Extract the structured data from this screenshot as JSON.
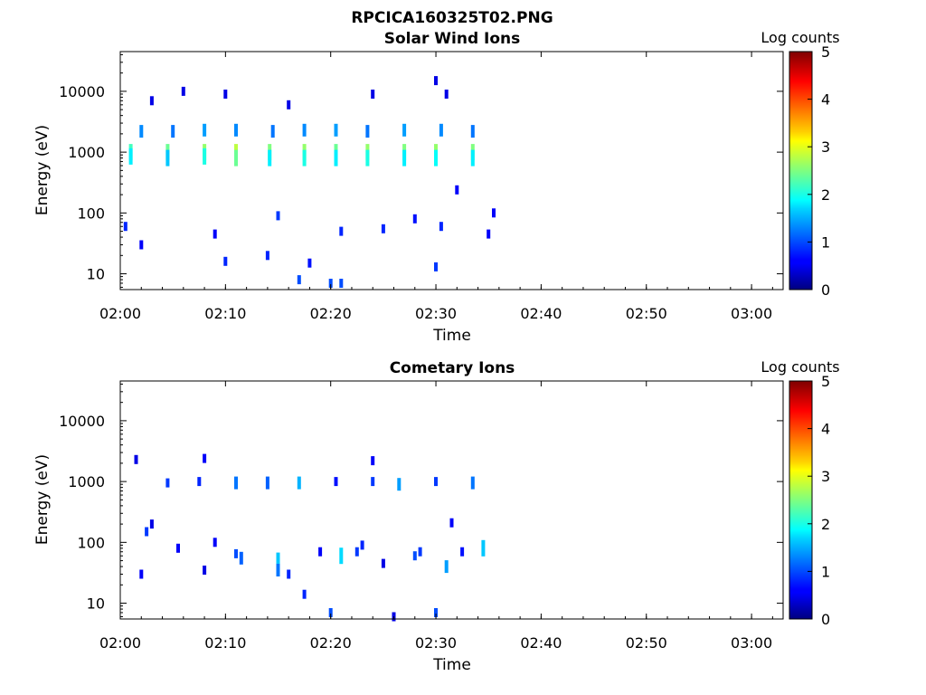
{
  "figure": {
    "title": "RPCICA160325T02.PNG"
  },
  "chart_data": [
    {
      "type": "heatmap",
      "title": "Solar Wind Ions",
      "xlabel": "Time",
      "ylabel": "Energy (eV)",
      "yscale": "log",
      "xlim": [
        "02:00",
        "03:03"
      ],
      "ylim": [
        5.5,
        45000
      ],
      "xticks": [
        "02:00",
        "02:10",
        "02:20",
        "02:30",
        "02:40",
        "02:50",
        "03:00"
      ],
      "yticks": [
        10,
        100,
        1000,
        10000
      ],
      "ytick_labels": [
        "10",
        "100",
        "1000",
        "10000"
      ],
      "colorbar": {
        "label": "Log counts",
        "min": 0,
        "max": 5,
        "ticks": [
          0,
          1,
          2,
          3,
          4,
          5
        ],
        "colormap": "jet"
      },
      "grid": false,
      "cells": [
        [
          "02:01",
          1000,
          2.2
        ],
        [
          "02:01",
          850,
          1.8
        ],
        [
          "02:04.5",
          1000,
          2.4
        ],
        [
          "02:04.5",
          800,
          1.6
        ],
        [
          "02:08",
          1000,
          2.6
        ],
        [
          "02:08",
          850,
          2.0
        ],
        [
          "02:11",
          1000,
          2.8
        ],
        [
          "02:11",
          800,
          2.4
        ],
        [
          "02:14.2",
          1000,
          2.5
        ],
        [
          "02:14.2",
          800,
          1.8
        ],
        [
          "02:17.5",
          1000,
          2.6
        ],
        [
          "02:17.5",
          800,
          2.0
        ],
        [
          "02:20.5",
          1000,
          2.4
        ],
        [
          "02:20.5",
          800,
          1.8
        ],
        [
          "02:23.5",
          1000,
          2.6
        ],
        [
          "02:23.5",
          800,
          2.0
        ],
        [
          "02:27",
          1000,
          2.5
        ],
        [
          "02:27",
          800,
          1.8
        ],
        [
          "02:30",
          1000,
          2.6
        ],
        [
          "02:30",
          800,
          1.9
        ],
        [
          "02:33.5",
          1000,
          2.5
        ],
        [
          "02:33.5",
          800,
          1.8
        ],
        [
          "02:02",
          2200,
          1.3
        ],
        [
          "02:05",
          2200,
          1.2
        ],
        [
          "02:08",
          2300,
          1.4
        ],
        [
          "02:11",
          2300,
          1.3
        ],
        [
          "02:14.5",
          2200,
          1.2
        ],
        [
          "02:17.5",
          2300,
          1.3
        ],
        [
          "02:20.5",
          2300,
          1.4
        ],
        [
          "02:23.5",
          2200,
          1.2
        ],
        [
          "02:27",
          2300,
          1.4
        ],
        [
          "02:30.5",
          2300,
          1.3
        ],
        [
          "02:33.5",
          2200,
          1.2
        ],
        [
          "02:03",
          7000,
          0.5
        ],
        [
          "02:06",
          10000,
          0.5
        ],
        [
          "02:10",
          9000,
          0.5
        ],
        [
          "02:16",
          6000,
          0.5
        ],
        [
          "02:24",
          9000,
          0.5
        ],
        [
          "02:30",
          15000,
          0.5
        ],
        [
          "02:31",
          9000,
          0.5
        ],
        [
          "02:00.5",
          60,
          0.8
        ],
        [
          "02:02",
          30,
          0.6
        ],
        [
          "02:09",
          45,
          0.6
        ],
        [
          "02:10",
          16,
          0.8
        ],
        [
          "02:14",
          20,
          0.8
        ],
        [
          "02:15",
          90,
          0.9
        ],
        [
          "02:17",
          8,
          1.0
        ],
        [
          "02:18",
          15,
          0.7
        ],
        [
          "02:20",
          7,
          1.0
        ],
        [
          "02:21",
          7,
          1.0
        ],
        [
          "02:21",
          50,
          0.8
        ],
        [
          "02:25",
          55,
          0.8
        ],
        [
          "02:28",
          80,
          0.7
        ],
        [
          "02:30",
          13,
          0.9
        ],
        [
          "02:30.5",
          60,
          0.8
        ],
        [
          "02:32",
          240,
          0.6
        ],
        [
          "02:35",
          45,
          0.6
        ],
        [
          "02:35.5",
          100,
          0.6
        ]
      ]
    },
    {
      "type": "heatmap",
      "title": "Cometary Ions",
      "xlabel": "Time",
      "ylabel": "Energy (eV)",
      "yscale": "log",
      "xlim": [
        "02:00",
        "03:03"
      ],
      "ylim": [
        5.5,
        45000
      ],
      "xticks": [
        "02:00",
        "02:10",
        "02:20",
        "02:30",
        "02:40",
        "02:50",
        "03:00"
      ],
      "yticks": [
        10,
        100,
        1000,
        10000
      ],
      "ytick_labels": [
        "10",
        "100",
        "1000",
        "10000"
      ],
      "colorbar": {
        "label": "Log counts",
        "min": 0,
        "max": 5,
        "ticks": [
          0,
          1,
          2,
          3,
          4,
          5
        ],
        "colormap": "jet"
      },
      "grid": false,
      "cells": [
        [
          "02:01.5",
          2300,
          0.5
        ],
        [
          "02:04.5",
          950,
          0.9
        ],
        [
          "02:07.5",
          1000,
          0.8
        ],
        [
          "02:08",
          2400,
          0.6
        ],
        [
          "02:11",
          950,
          1.2
        ],
        [
          "02:14",
          950,
          1.1
        ],
        [
          "02:17",
          950,
          1.5
        ],
        [
          "02:20.5",
          1000,
          0.7
        ],
        [
          "02:24",
          1000,
          0.9
        ],
        [
          "02:24",
          2200,
          0.6
        ],
        [
          "02:26.5",
          900,
          1.4
        ],
        [
          "02:30",
          1000,
          0.9
        ],
        [
          "02:33.5",
          950,
          1.2
        ],
        [
          "02:02.5",
          150,
          0.9
        ],
        [
          "02:03",
          200,
          0.5
        ],
        [
          "02:05.5",
          80,
          0.6
        ],
        [
          "02:09",
          100,
          0.6
        ],
        [
          "02:11",
          65,
          1.0
        ],
        [
          "02:11.5",
          55,
          1.1
        ],
        [
          "02:15",
          50,
          1.6
        ],
        [
          "02:15",
          35,
          1.2
        ],
        [
          "02:16",
          30,
          0.8
        ],
        [
          "02:19",
          70,
          0.6
        ],
        [
          "02:21",
          60,
          1.7
        ],
        [
          "02:22.5",
          70,
          0.9
        ],
        [
          "02:23",
          90,
          0.8
        ],
        [
          "02:25",
          45,
          0.5
        ],
        [
          "02:28",
          60,
          1.0
        ],
        [
          "02:28.5",
          70,
          0.9
        ],
        [
          "02:31",
          40,
          1.4
        ],
        [
          "02:32.5",
          70,
          0.7
        ],
        [
          "02:34.5",
          80,
          1.6
        ],
        [
          "02:17.5",
          14,
          0.8
        ],
        [
          "02:20",
          7,
          1.0
        ],
        [
          "02:30",
          7,
          1.0
        ],
        [
          "02:02",
          30,
          0.6
        ],
        [
          "02:08",
          35,
          0.5
        ],
        [
          "02:26",
          6,
          0.5
        ],
        [
          "02:31.5",
          210,
          0.6
        ]
      ]
    }
  ]
}
